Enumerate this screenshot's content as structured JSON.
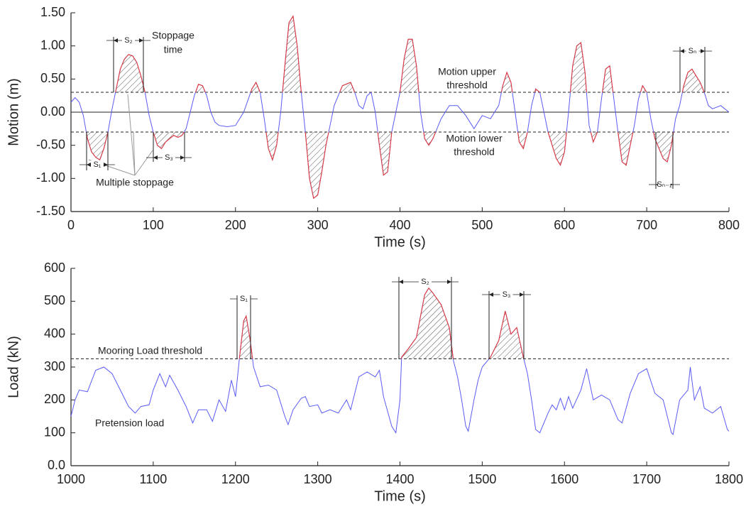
{
  "chart_data": [
    {
      "type": "line",
      "xlabel": "Time (s)",
      "ylabel": "Motion (m)",
      "x": [
        0,
        5,
        10,
        15,
        20,
        25,
        30,
        35,
        40,
        45,
        50,
        55,
        60,
        65,
        70,
        75,
        80,
        85,
        90,
        95,
        100,
        105,
        110,
        115,
        120,
        125,
        130,
        135,
        140,
        145,
        150,
        155,
        160,
        165,
        170,
        175,
        180,
        190,
        200,
        210,
        220,
        225,
        230,
        235,
        240,
        245,
        250,
        255,
        260,
        265,
        270,
        275,
        280,
        285,
        290,
        295,
        300,
        305,
        310,
        315,
        320,
        330,
        340,
        345,
        350,
        355,
        360,
        365,
        370,
        375,
        380,
        385,
        390,
        395,
        400,
        405,
        410,
        415,
        420,
        425,
        430,
        435,
        440,
        450,
        460,
        470,
        480,
        490,
        500,
        510,
        520,
        525,
        530,
        535,
        540,
        545,
        550,
        555,
        560,
        565,
        570,
        575,
        580,
        590,
        595,
        600,
        605,
        610,
        615,
        620,
        625,
        630,
        635,
        640,
        645,
        650,
        655,
        660,
        665,
        670,
        675,
        680,
        685,
        690,
        695,
        700,
        705,
        710,
        720,
        725,
        730,
        735,
        740,
        745,
        750,
        755,
        760,
        765,
        770,
        775,
        780,
        790,
        800
      ],
      "values": [
        0.15,
        0.22,
        0.15,
        -0.05,
        -0.4,
        -0.6,
        -0.68,
        -0.72,
        -0.55,
        -0.3,
        0.05,
        0.35,
        0.65,
        0.8,
        0.87,
        0.85,
        0.75,
        0.55,
        0.3,
        -0.05,
        -0.3,
        -0.5,
        -0.55,
        -0.45,
        -0.4,
        -0.35,
        -0.38,
        -0.35,
        -0.25,
        0.0,
        0.25,
        0.42,
        0.4,
        0.25,
        0.0,
        -0.15,
        -0.2,
        -0.22,
        -0.2,
        0.0,
        0.35,
        0.45,
        0.3,
        -0.1,
        -0.55,
        -0.72,
        -0.5,
        0.0,
        0.7,
        1.35,
        1.45,
        1.0,
        0.3,
        -0.3,
        -1.0,
        -1.3,
        -1.25,
        -0.9,
        -0.5,
        -0.2,
        0.1,
        0.4,
        0.45,
        0.3,
        0.1,
        0.05,
        0.25,
        0.3,
        0.0,
        -0.5,
        -0.95,
        -0.9,
        -0.3,
        0.0,
        0.3,
        0.8,
        1.1,
        1.1,
        0.7,
        0.0,
        -0.4,
        -0.5,
        -0.4,
        -0.1,
        0.1,
        0.1,
        -0.05,
        -0.25,
        -0.05,
        -0.1,
        0.1,
        0.4,
        0.6,
        0.45,
        0.0,
        -0.45,
        -0.55,
        -0.3,
        0.1,
        0.35,
        0.3,
        0.0,
        -0.3,
        -0.7,
        -0.8,
        -0.6,
        0.0,
        0.7,
        1.0,
        1.05,
        0.6,
        -0.2,
        -0.45,
        -0.3,
        0.2,
        0.65,
        0.7,
        0.2,
        -0.3,
        -0.75,
        -0.8,
        -0.5,
        -0.2,
        0.2,
        0.4,
        0.3,
        -0.1,
        -0.4,
        -0.7,
        -0.75,
        -0.5,
        -0.1,
        0.1,
        0.4,
        0.6,
        0.65,
        0.55,
        0.45,
        0.3,
        0.1,
        0.05,
        0.1,
        0.0
      ],
      "color": "#5a5af5",
      "exceed_color": "#e03a3a",
      "xlim": [
        0,
        800
      ],
      "xticks": [
        0,
        100,
        200,
        300,
        400,
        500,
        600,
        700,
        800
      ],
      "ylim": [
        -1.5,
        1.5
      ],
      "yticks": [
        {
          "value": 1.5,
          "label": "1.50"
        },
        {
          "value": 1,
          "label": "1.00"
        },
        {
          "value": 0.5,
          "label": "0.50"
        },
        {
          "value": 0,
          "label": "0.00"
        },
        {
          "value": -0.5,
          "label": "-0.50"
        },
        {
          "value": -1,
          "label": "-1.00"
        },
        {
          "value": -1.5,
          "label": "-1.50"
        }
      ],
      "thresholds": [
        0.3,
        -0.3
      ],
      "zero_line": true,
      "annotations": [
        "Stoppage",
        "time",
        "Motion upper",
        "threshold",
        "Motion lower",
        "threshold",
        "Multiple stoppage"
      ],
      "span_labels": [
        "S₂",
        "S₁",
        "S₃",
        "Sₙ",
        "Sₙ₋₁"
      ]
    },
    {
      "type": "line",
      "xlabel": "Time (s)",
      "ylabel": "Load (kN)",
      "x": [
        1000,
        1005,
        1010,
        1020,
        1030,
        1040,
        1050,
        1060,
        1070,
        1078,
        1085,
        1095,
        1100,
        1108,
        1115,
        1120,
        1130,
        1140,
        1148,
        1155,
        1165,
        1172,
        1180,
        1188,
        1195,
        1200,
        1205,
        1210,
        1213,
        1218,
        1222,
        1230,
        1240,
        1250,
        1260,
        1264,
        1270,
        1280,
        1285,
        1290,
        1300,
        1305,
        1315,
        1325,
        1335,
        1340,
        1350,
        1360,
        1370,
        1375,
        1380,
        1390,
        1395,
        1400,
        1402,
        1410,
        1420,
        1430,
        1435,
        1440,
        1450,
        1460,
        1465,
        1470,
        1475,
        1480,
        1483,
        1490,
        1495,
        1500,
        1510,
        1520,
        1528,
        1535,
        1542,
        1550,
        1555,
        1560,
        1565,
        1570,
        1580,
        1585,
        1590,
        1595,
        1600,
        1605,
        1610,
        1620,
        1627,
        1635,
        1645,
        1655,
        1665,
        1670,
        1680,
        1690,
        1700,
        1710,
        1720,
        1730,
        1732,
        1740,
        1750,
        1753,
        1758,
        1765,
        1770,
        1780,
        1790,
        1798,
        1800
      ],
      "values": [
        150,
        200,
        230,
        225,
        290,
        300,
        280,
        230,
        180,
        160,
        180,
        185,
        230,
        280,
        240,
        275,
        230,
        180,
        130,
        170,
        170,
        135,
        200,
        165,
        260,
        210,
        330,
        440,
        455,
        380,
        300,
        240,
        245,
        230,
        150,
        125,
        170,
        205,
        210,
        180,
        185,
        160,
        170,
        160,
        200,
        170,
        270,
        285,
        270,
        290,
        210,
        120,
        100,
        200,
        330,
        355,
        390,
        520,
        540,
        525,
        490,
        420,
        320,
        270,
        200,
        120,
        105,
        200,
        260,
        300,
        330,
        380,
        470,
        400,
        420,
        330,
        280,
        200,
        110,
        100,
        160,
        185,
        170,
        205,
        170,
        210,
        175,
        230,
        295,
        200,
        215,
        200,
        140,
        130,
        220,
        280,
        295,
        220,
        200,
        100,
        95,
        200,
        230,
        300,
        200,
        240,
        175,
        160,
        180,
        110,
        105
      ],
      "color": "#5a5af5",
      "exceed_color": "#e03a3a",
      "xlim": [
        1000,
        1800
      ],
      "xticks": [
        1000,
        1100,
        1200,
        1300,
        1400,
        1500,
        1600,
        1700,
        1800
      ],
      "ylim": [
        0,
        600
      ],
      "yticks": [
        600,
        500,
        400,
        300,
        200,
        100,
        {
          "value": 0,
          "label": "0.0"
        }
      ],
      "thresholds": [
        325
      ],
      "zero_line": false,
      "annotations": [
        "Mooring Load threshold",
        "Pretension load"
      ],
      "span_labels": [
        "S₁",
        "S₂",
        "S₃"
      ]
    }
  ]
}
